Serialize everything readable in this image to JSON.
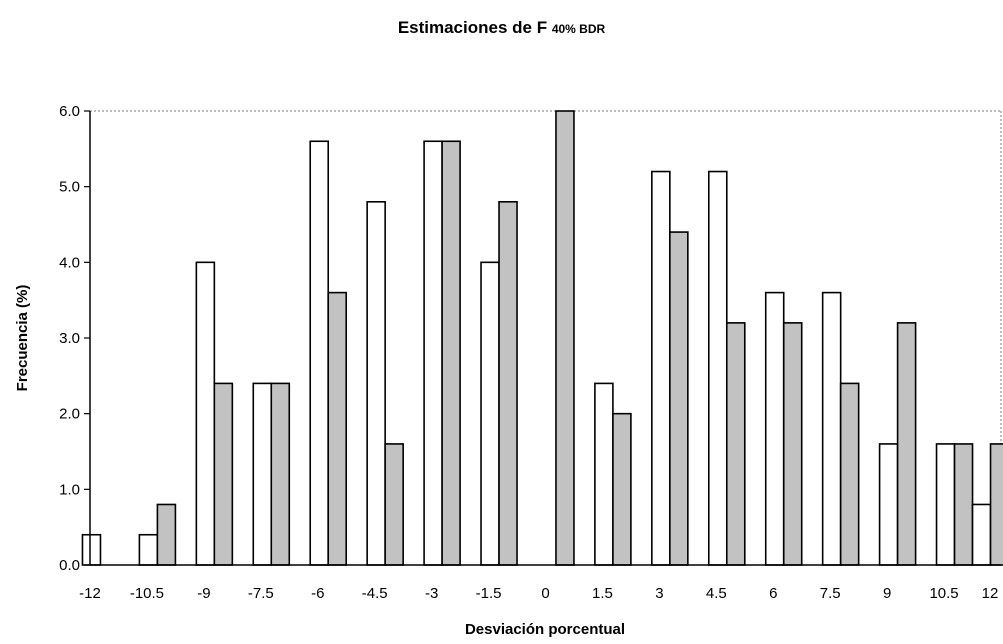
{
  "chart_data": {
    "type": "bar",
    "title": "Estimaciones de F",
    "title_subscript": "40% BDR",
    "xlabel": "Desviación porcentual",
    "ylabel": "Frecuencia (%)",
    "x_tick_labels": [
      "-12",
      "-10.5",
      "-9",
      "-7.5",
      "-6",
      "-4.5",
      "-3",
      "-1.5",
      "0",
      "1.5",
      "3",
      "4.5",
      "6",
      "7.5",
      "9",
      "10.5",
      "12"
    ],
    "y_tick_labels": [
      "0.0",
      "1.0",
      "2.0",
      "3.0",
      "4.0",
      "5.0",
      "6.0"
    ],
    "ylim": [
      0,
      6
    ],
    "xlim": [
      -12,
      12
    ],
    "categories": [
      "-11.25",
      "-9.75",
      "-8.25",
      "-6.75",
      "-5.25",
      "-3.75",
      "-2.25",
      "-0.75",
      "0.75",
      "2.25",
      "3.75",
      "5.25",
      "6.75",
      "8.25",
      "9.75",
      "11.25"
    ],
    "series": [
      {
        "color": "#ffffff",
        "values": [
          0.4,
          0.4,
          4.0,
          2.4,
          5.6,
          4.8,
          5.6,
          4.0,
          0.0,
          2.4,
          5.2,
          5.2,
          3.6,
          3.6,
          1.6,
          1.6
        ]
      },
      {
        "color": "#c2c2c2",
        "values": [
          0.0,
          0.8,
          2.4,
          2.4,
          3.6,
          1.6,
          5.6,
          4.8,
          6.0,
          2.0,
          4.4,
          3.2,
          3.2,
          2.4,
          3.2,
          1.6
        ]
      },
      {
        "color": "#ffffff",
        "values": [
          0.0,
          0.0,
          0.0,
          0.0,
          0.0,
          0.0,
          0.0,
          0.0,
          0.0,
          0.0,
          0.0,
          0.0,
          0.0,
          0.0,
          0.0,
          0.8
        ]
      },
      {
        "color": "#c2c2c2",
        "values": [
          0.0,
          0.0,
          0.0,
          0.0,
          0.0,
          0.0,
          0.0,
          0.0,
          0.0,
          0.0,
          0.0,
          0.0,
          0.0,
          0.0,
          0.0,
          1.6
        ]
      }
    ],
    "grid": false,
    "legend": "none"
  }
}
